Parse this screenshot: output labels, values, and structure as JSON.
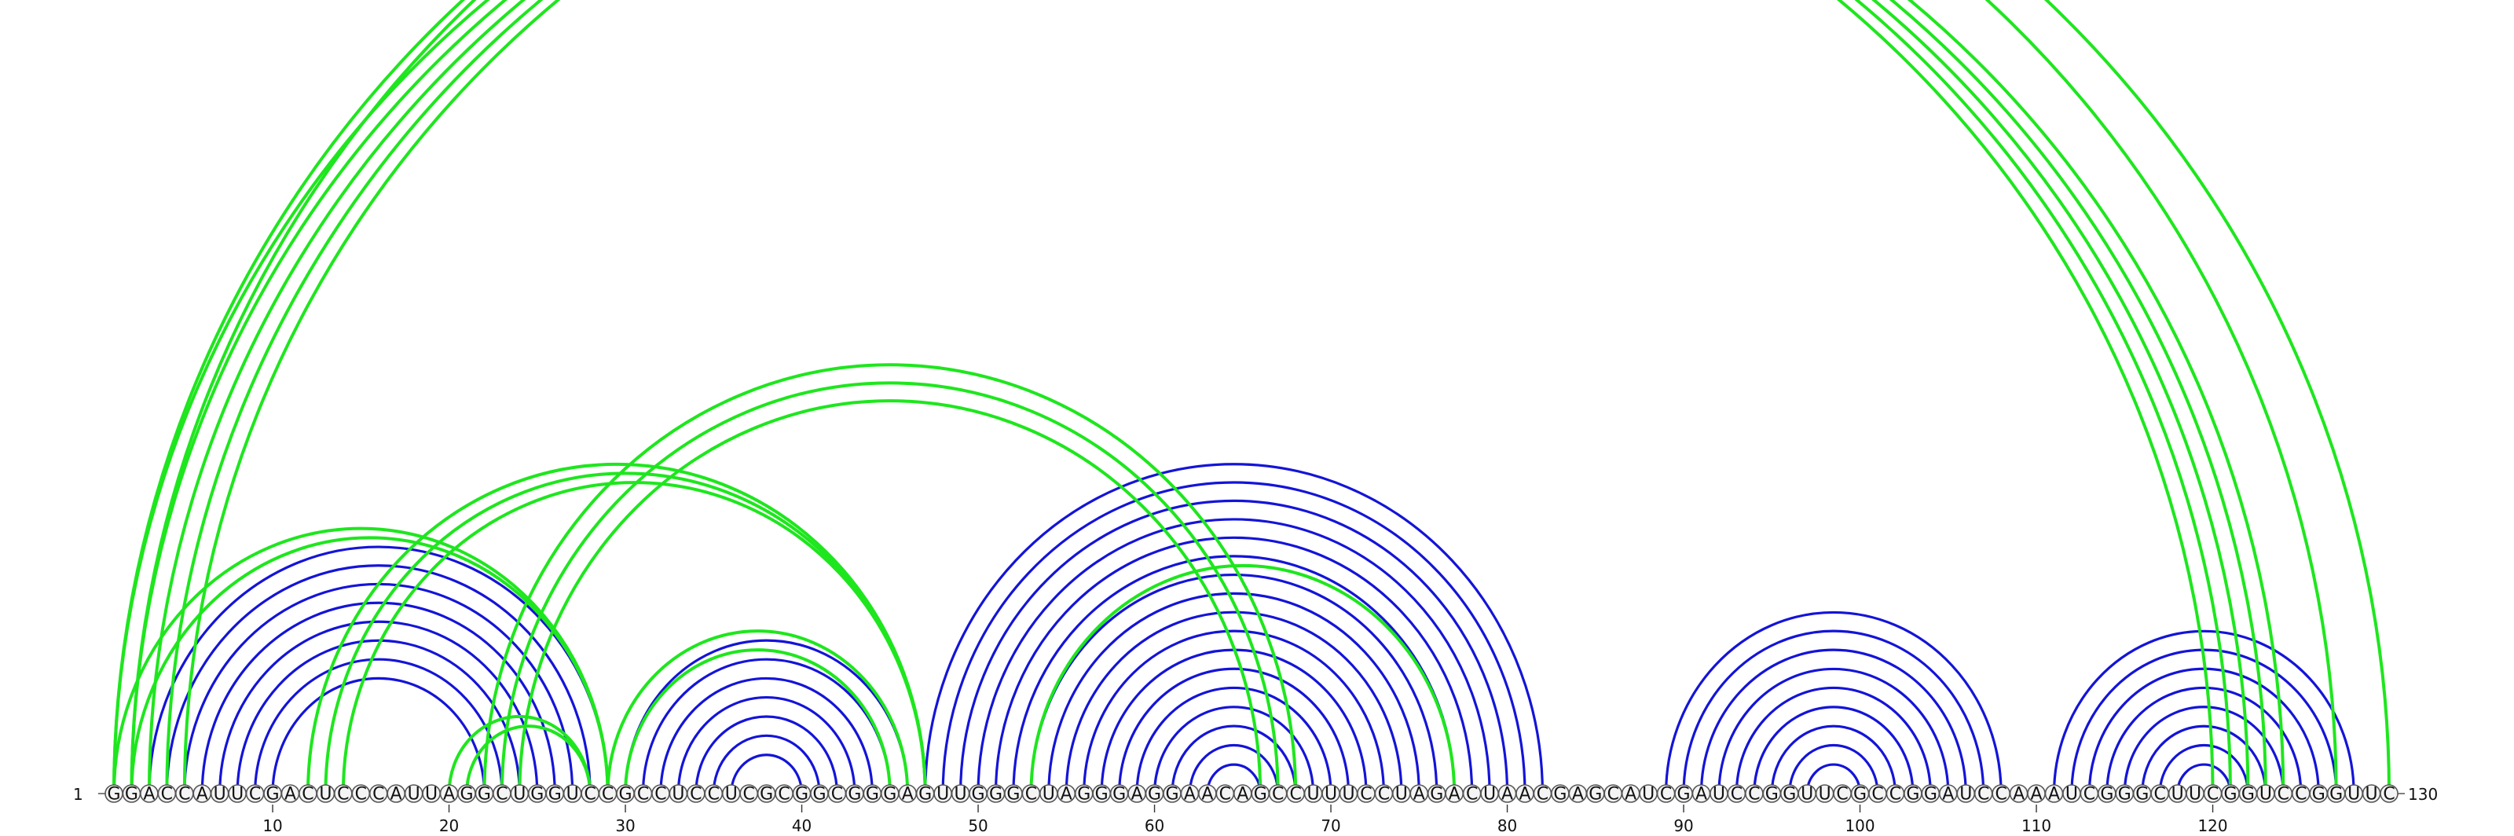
{
  "diagram": {
    "sequence": "GGACCAUUCGACUCCCAUUAGGCUGGUCCGCCUCCUCGCGGCGGGAGUUGGGCUAGGGAGGAACAGCCUUUCCUAGACUAACGAGCAUCGAUCCGGUUCGCCGGAUCCAAAUCGGGCUUCGGUCCGGUUC",
    "start_label": "1",
    "end_label": "130",
    "tick_positions": [
      10,
      20,
      30,
      40,
      50,
      60,
      70,
      80,
      90,
      100,
      110,
      120
    ],
    "colors": {
      "blue": "#1414d8",
      "green": "#1ee61e"
    },
    "arc_groups": [
      {
        "color": "blue",
        "pairs": [
          [
            3,
            29
          ],
          [
            4,
            28
          ],
          [
            5,
            27
          ],
          [
            6,
            26
          ],
          [
            7,
            25
          ],
          [
            8,
            24
          ],
          [
            9,
            23
          ],
          [
            10,
            22
          ]
        ]
      },
      {
        "color": "blue",
        "pairs": [
          [
            30,
            46
          ],
          [
            31,
            45
          ],
          [
            32,
            44
          ],
          [
            33,
            43
          ],
          [
            34,
            42
          ],
          [
            35,
            41
          ],
          [
            36,
            40
          ]
        ]
      },
      {
        "color": "blue",
        "pairs": [
          [
            47,
            82
          ],
          [
            48,
            81
          ],
          [
            49,
            80
          ],
          [
            50,
            79
          ],
          [
            51,
            78
          ],
          [
            52,
            77
          ],
          [
            53,
            76
          ],
          [
            54,
            75
          ],
          [
            55,
            74
          ],
          [
            56,
            73
          ],
          [
            57,
            72
          ],
          [
            58,
            71
          ],
          [
            59,
            70
          ],
          [
            60,
            69
          ],
          [
            61,
            68
          ],
          [
            62,
            67
          ],
          [
            63,
            66
          ]
        ]
      },
      {
        "color": "blue",
        "pairs": [
          [
            89,
            108
          ],
          [
            90,
            107
          ],
          [
            91,
            106
          ],
          [
            92,
            105
          ],
          [
            93,
            104
          ],
          [
            94,
            103
          ],
          [
            95,
            102
          ],
          [
            96,
            101
          ],
          [
            97,
            100
          ]
        ]
      },
      {
        "color": "blue",
        "pairs": [
          [
            111,
            128
          ],
          [
            112,
            127
          ],
          [
            113,
            126
          ],
          [
            114,
            125
          ],
          [
            115,
            124
          ],
          [
            116,
            123
          ],
          [
            117,
            122
          ],
          [
            118,
            121
          ]
        ]
      },
      {
        "color": "green",
        "pairs": [
          [
            1,
            120
          ],
          [
            2,
            121
          ],
          [
            3,
            122
          ],
          [
            4,
            123
          ],
          [
            5,
            124
          ],
          [
            1,
            127
          ],
          [
            2,
            130
          ]
        ]
      },
      {
        "color": "green",
        "pairs": [
          [
            1,
            29
          ],
          [
            2,
            29
          ],
          [
            20,
            28
          ],
          [
            21,
            28
          ]
        ]
      },
      {
        "color": "green",
        "pairs": [
          [
            12,
            47
          ],
          [
            13,
            47
          ],
          [
            14,
            47
          ]
        ]
      },
      {
        "color": "green",
        "pairs": [
          [
            22,
            68
          ],
          [
            23,
            67
          ],
          [
            24,
            66
          ]
        ]
      },
      {
        "color": "green",
        "pairs": [
          [
            29,
            46
          ],
          [
            30,
            45
          ]
        ]
      },
      {
        "color": "green",
        "pairs": [
          [
            53,
            77
          ]
        ]
      }
    ]
  }
}
